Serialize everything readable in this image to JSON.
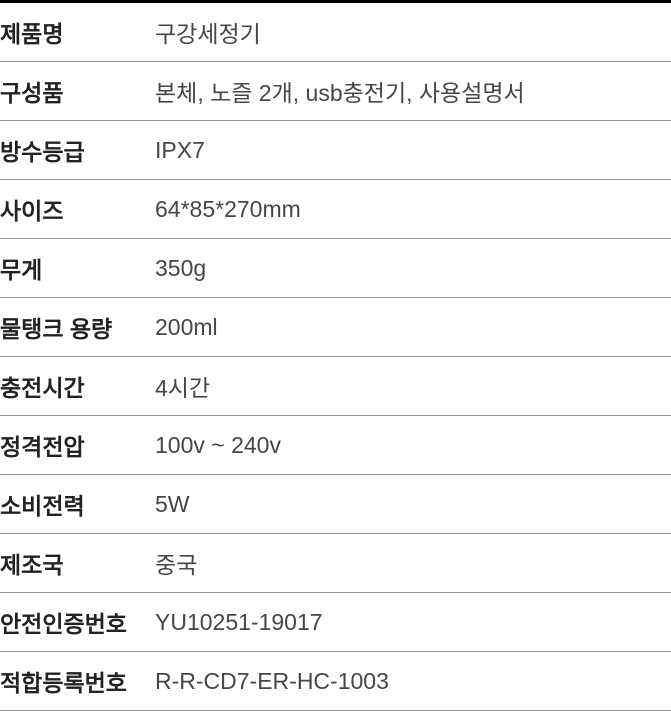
{
  "spec": {
    "rows": [
      {
        "label": "제품명",
        "value": "구강세정기"
      },
      {
        "label": "구성품",
        "value": "본체, 노즐 2개, usb충전기, 사용설명서"
      },
      {
        "label": "방수등급",
        "value": "IPX7"
      },
      {
        "label": "사이즈",
        "value": "64*85*270mm"
      },
      {
        "label": "무게",
        "value": "350g"
      },
      {
        "label": "물탱크 용량",
        "value": "200ml"
      },
      {
        "label": "충전시간",
        "value": "4시간"
      },
      {
        "label": "정격전압",
        "value": "100v ~ 240v"
      },
      {
        "label": "소비전력",
        "value": "5W"
      },
      {
        "label": "제조국",
        "value": "중국"
      },
      {
        "label": "안전인증번호",
        "value": "YU10251-19017"
      },
      {
        "label": "적합등록번호",
        "value": "R-R-CD7-ER-HC-1003"
      }
    ]
  },
  "style": {
    "border_top_color": "#000000",
    "border_top_width": 3,
    "row_border_color": "#999999",
    "label_color": "#222222",
    "value_color": "#464646",
    "row_padding_v": 12,
    "label_fontsize": 23,
    "value_fontsize": 23,
    "label_weight": 700,
    "value_weight": 400,
    "label_width": 155,
    "background_color": "#ffffff"
  }
}
